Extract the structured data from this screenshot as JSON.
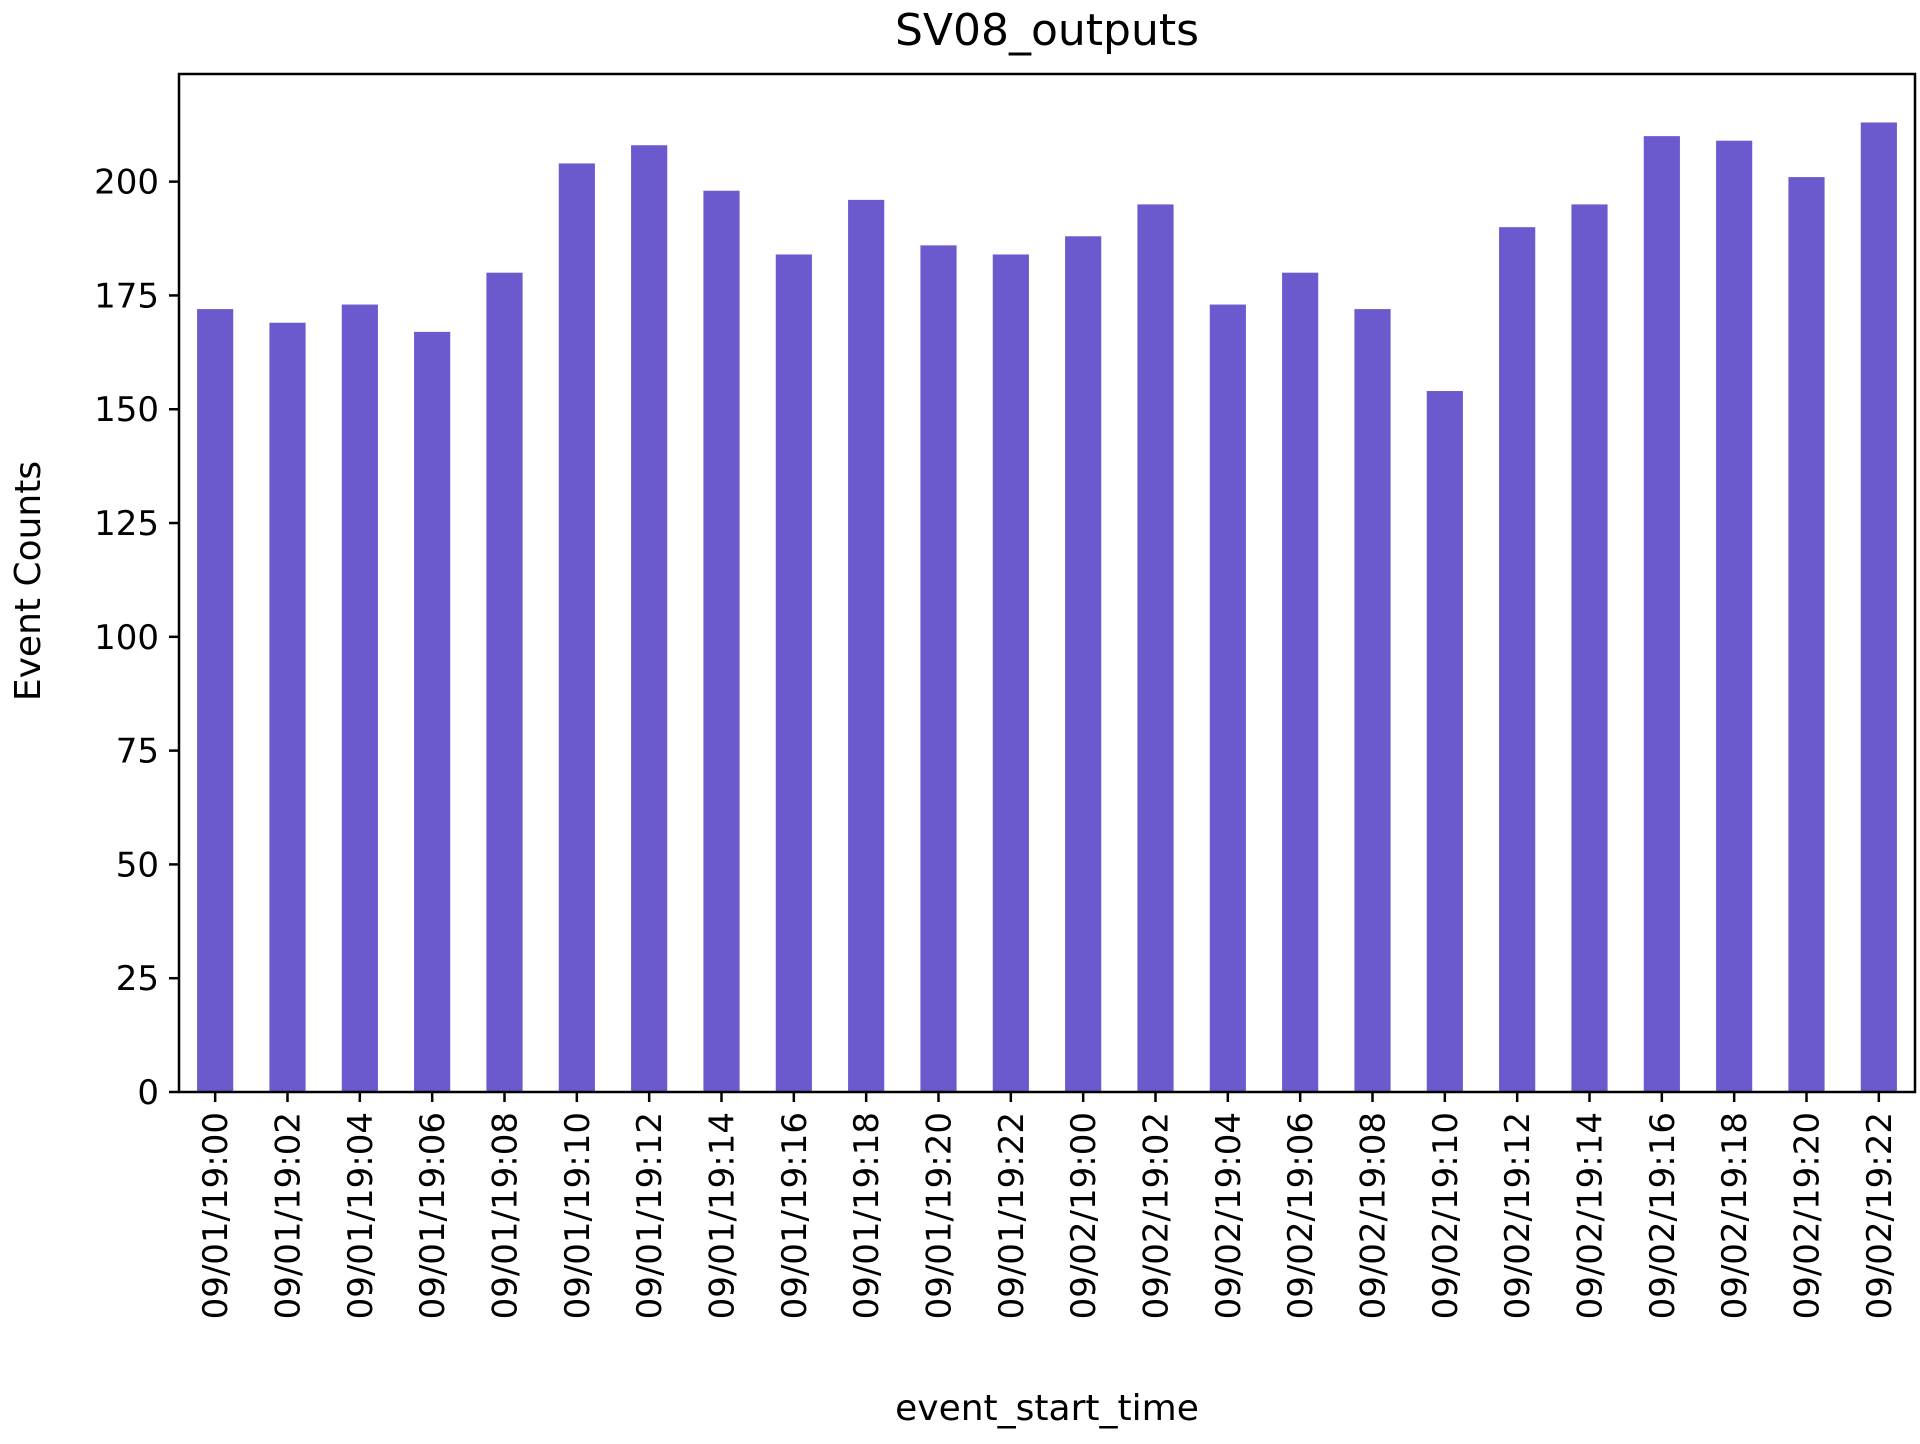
{
  "chart_data": {
    "type": "bar",
    "title": "SV08_outputs",
    "xlabel": "event_start_time",
    "ylabel": "Event Counts",
    "categories": [
      "09/01/19:00",
      "09/01/19:02",
      "09/01/19:04",
      "09/01/19:06",
      "09/01/19:08",
      "09/01/19:10",
      "09/01/19:12",
      "09/01/19:14",
      "09/01/19:16",
      "09/01/19:18",
      "09/01/19:20",
      "09/01/19:22",
      "09/02/19:00",
      "09/02/19:02",
      "09/02/19:04",
      "09/02/19:06",
      "09/02/19:08",
      "09/02/19:10",
      "09/02/19:12",
      "09/02/19:14",
      "09/02/19:16",
      "09/02/19:18",
      "09/02/19:20",
      "09/02/19:22"
    ],
    "values": [
      172,
      169,
      173,
      167,
      180,
      204,
      208,
      198,
      184,
      196,
      186,
      184,
      188,
      195,
      173,
      180,
      172,
      154,
      190,
      195,
      210,
      209,
      201,
      213
    ],
    "yticks": [
      0,
      25,
      50,
      75,
      100,
      125,
      150,
      175,
      200
    ],
    "ylim": [
      0,
      223.65
    ],
    "grid": false,
    "legend": "none",
    "bar_color": "#6a5acd"
  }
}
